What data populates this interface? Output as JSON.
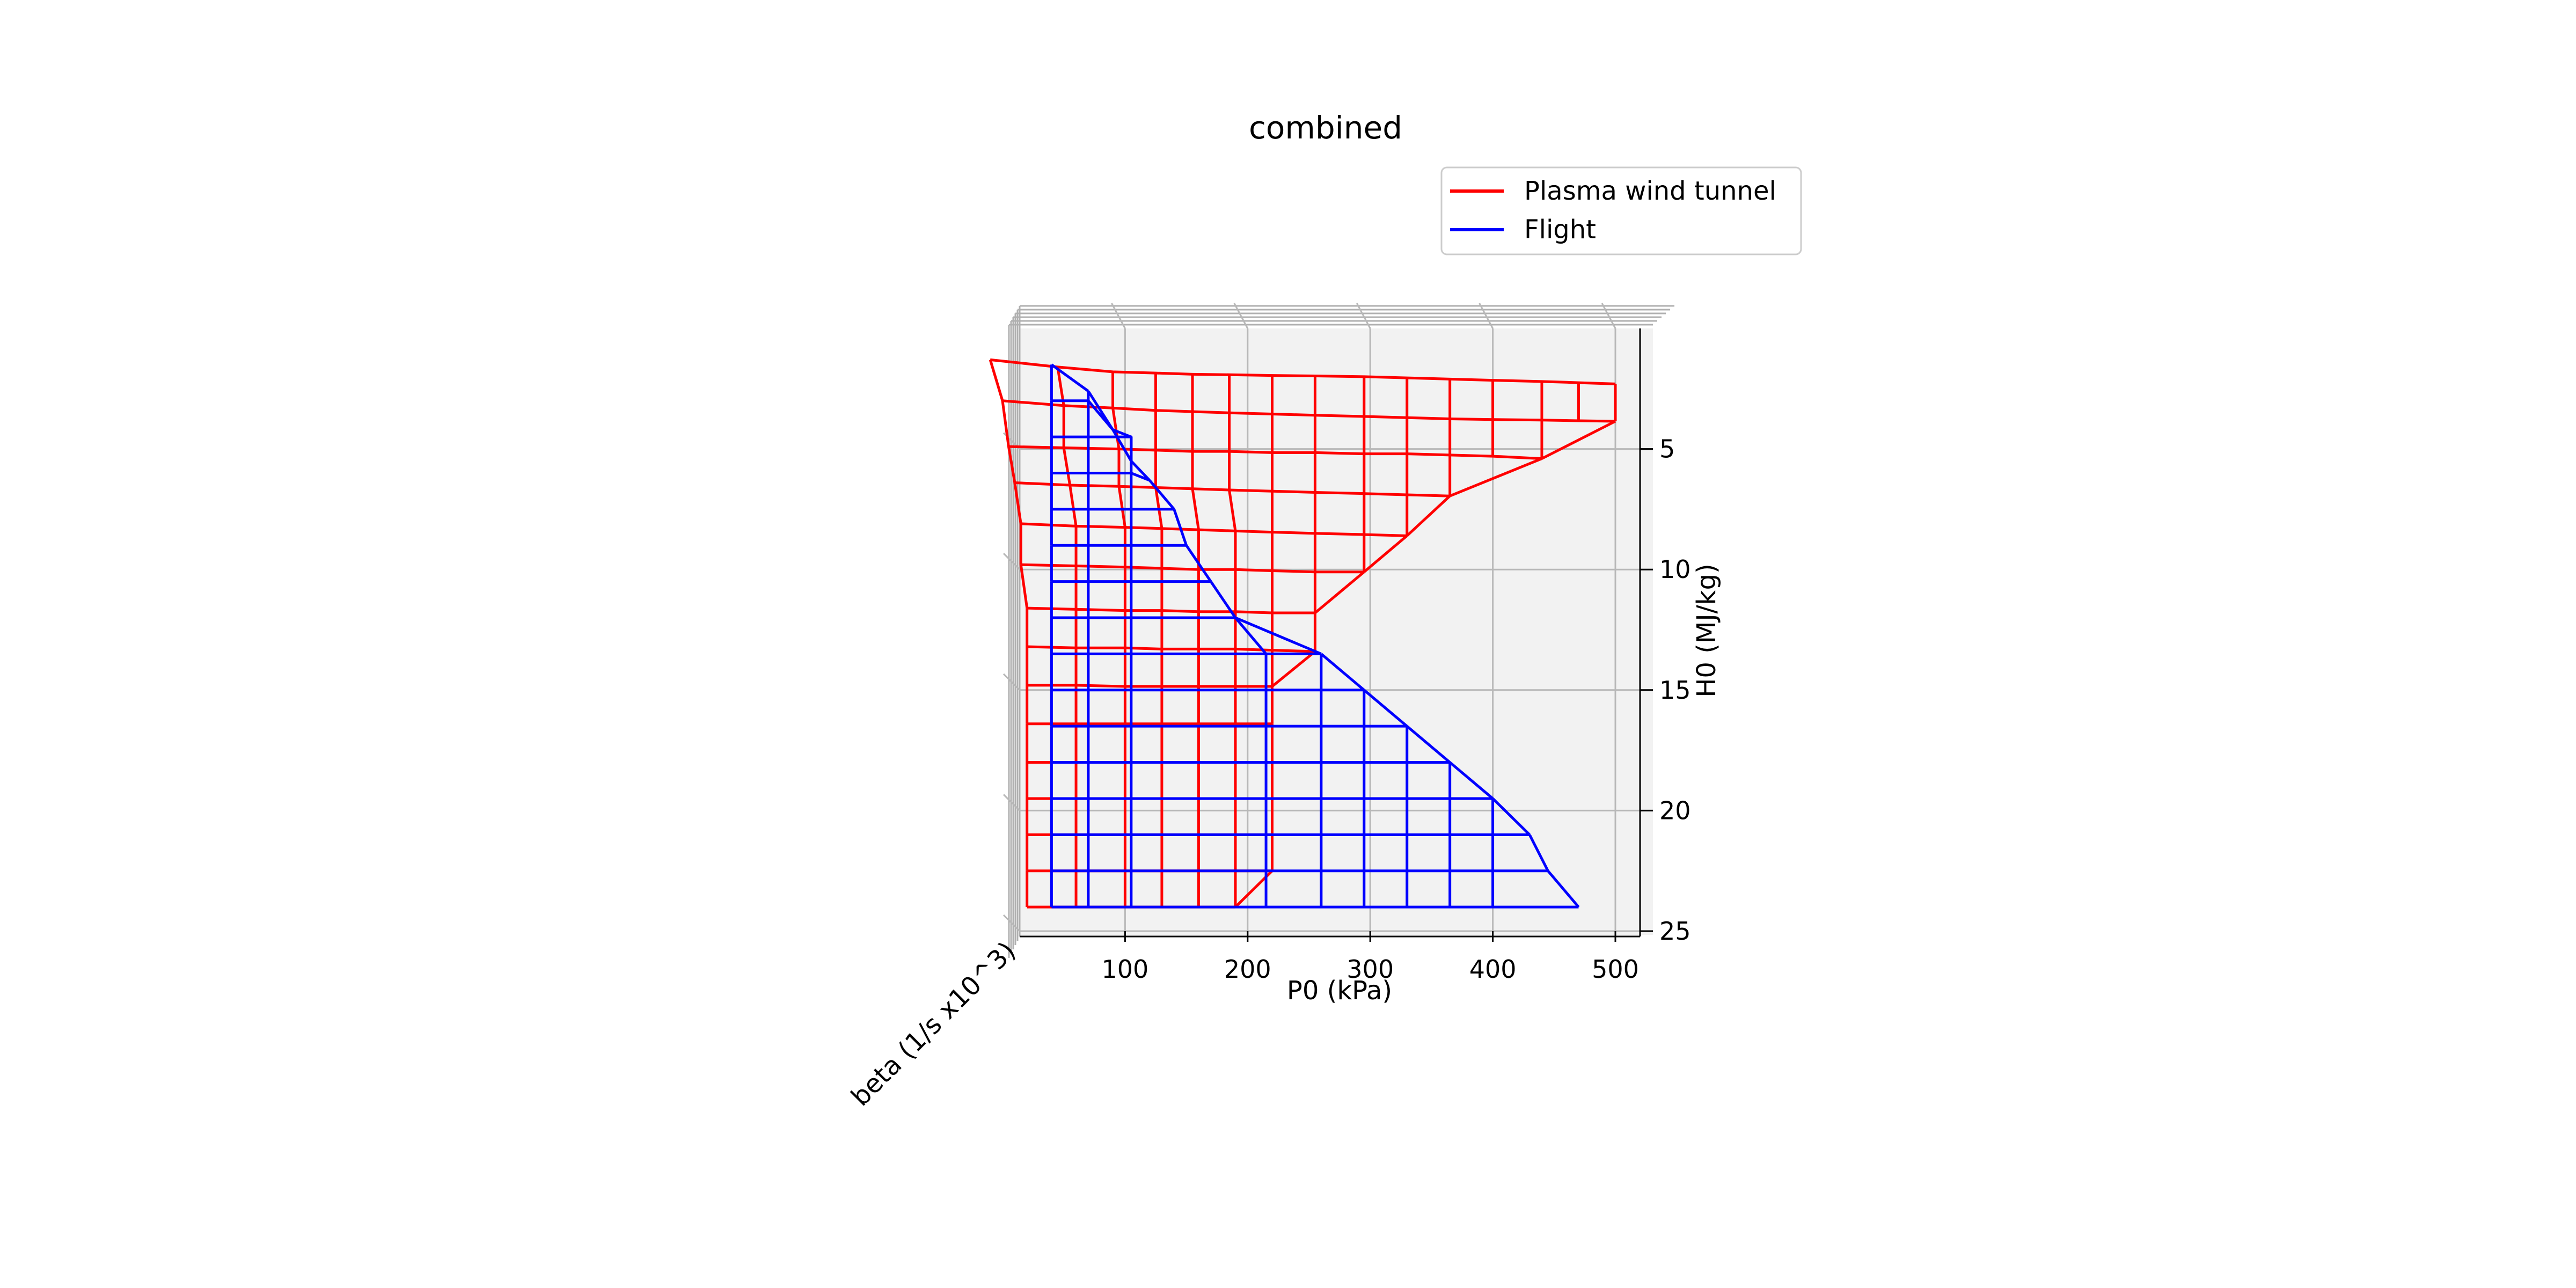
{
  "chart_data": {
    "type": "wireframe",
    "title": "combined",
    "xlabel": "P0 (kPa)",
    "ylabel": "beta (1/s x10^3)",
    "zlabel": "H0 (MJ/kg)",
    "x_ticks": [
      100,
      200,
      300,
      400,
      500
    ],
    "z_ticks": [
      5,
      10,
      15,
      20,
      25
    ],
    "xlim": [
      0,
      510
    ],
    "zlim": [
      0,
      25.5
    ],
    "z_inverted": true,
    "grid": true,
    "legend_position": "top-right",
    "series": [
      {
        "name": "Plasma wind tunnel",
        "color": "#ff0000",
        "rows": [
          [
            [
              -10,
              1.3
            ],
            [
              45,
              1.6
            ],
            [
              90,
              1.8
            ],
            [
              125,
              1.85
            ],
            [
              155,
              1.9
            ],
            [
              185,
              1.92
            ],
            [
              220,
              1.95
            ],
            [
              255,
              1.97
            ],
            [
              295,
              2
            ],
            [
              330,
              2.05
            ],
            [
              365,
              2.1
            ],
            [
              400,
              2.15
            ],
            [
              440,
              2.2
            ],
            [
              470,
              2.25
            ],
            [
              500,
              2.3
            ]
          ],
          [
            [
              0,
              3
            ],
            [
              50,
              3.2
            ],
            [
              90,
              3.3
            ],
            [
              125,
              3.4
            ],
            [
              155,
              3.45
            ],
            [
              185,
              3.5
            ],
            [
              220,
              3.55
            ],
            [
              255,
              3.6
            ],
            [
              295,
              3.65
            ],
            [
              330,
              3.7
            ],
            [
              365,
              3.75
            ],
            [
              400,
              3.78
            ],
            [
              440,
              3.8
            ],
            [
              470,
              3.83
            ],
            [
              500,
              3.85
            ]
          ],
          [
            [
              5,
              4.9
            ],
            [
              50,
              4.95
            ],
            [
              95,
              5
            ],
            [
              125,
              5.05
            ],
            [
              155,
              5.1
            ],
            [
              185,
              5.1
            ],
            [
              220,
              5.15
            ],
            [
              255,
              5.15
            ],
            [
              295,
              5.2
            ],
            [
              330,
              5.2
            ],
            [
              365,
              5.25
            ],
            [
              400,
              5.3
            ],
            [
              440,
              5.4
            ]
          ],
          [
            [
              10,
              6.4
            ],
            [
              55,
              6.5
            ],
            [
              95,
              6.55
            ],
            [
              125,
              6.6
            ],
            [
              155,
              6.65
            ],
            [
              185,
              6.7
            ],
            [
              220,
              6.75
            ],
            [
              255,
              6.8
            ],
            [
              295,
              6.85
            ],
            [
              330,
              6.9
            ],
            [
              365,
              6.95
            ]
          ],
          [
            [
              15,
              8.1
            ],
            [
              60,
              8.2
            ],
            [
              100,
              8.25
            ],
            [
              130,
              8.3
            ],
            [
              160,
              8.35
            ],
            [
              190,
              8.4
            ],
            [
              220,
              8.45
            ],
            [
              255,
              8.5
            ],
            [
              295,
              8.55
            ],
            [
              330,
              8.6
            ]
          ],
          [
            [
              15,
              9.8
            ],
            [
              60,
              9.85
            ],
            [
              100,
              9.9
            ],
            [
              130,
              9.95
            ],
            [
              160,
              10
            ],
            [
              190,
              10
            ],
            [
              220,
              10.05
            ],
            [
              255,
              10.1
            ],
            [
              295,
              10.1
            ]
          ],
          [
            [
              20,
              11.6
            ],
            [
              60,
              11.65
            ],
            [
              100,
              11.7
            ],
            [
              130,
              11.7
            ],
            [
              160,
              11.75
            ],
            [
              190,
              11.75
            ],
            [
              220,
              11.8
            ],
            [
              255,
              11.8
            ]
          ],
          [
            [
              20,
              13.2
            ],
            [
              60,
              13.25
            ],
            [
              100,
              13.25
            ],
            [
              130,
              13.3
            ],
            [
              160,
              13.3
            ],
            [
              190,
              13.3
            ],
            [
              220,
              13.35
            ],
            [
              255,
              13.4
            ]
          ],
          [
            [
              20,
              14.8
            ],
            [
              60,
              14.8
            ],
            [
              100,
              14.85
            ],
            [
              130,
              14.85
            ],
            [
              160,
              14.85
            ],
            [
              190,
              14.85
            ],
            [
              220,
              14.85
            ]
          ],
          [
            [
              20,
              16.4
            ],
            [
              60,
              16.4
            ],
            [
              100,
              16.4
            ],
            [
              130,
              16.4
            ],
            [
              160,
              16.4
            ],
            [
              190,
              16.4
            ],
            [
              220,
              16.4
            ]
          ],
          [
            [
              20,
              18
            ],
            [
              60,
              18
            ],
            [
              100,
              18
            ],
            [
              130,
              18
            ],
            [
              160,
              18
            ],
            [
              190,
              18
            ],
            [
              220,
              18
            ]
          ],
          [
            [
              20,
              19.5
            ],
            [
              60,
              19.5
            ],
            [
              100,
              19.5
            ],
            [
              130,
              19.5
            ],
            [
              160,
              19.5
            ],
            [
              190,
              19.5
            ],
            [
              220,
              19.5
            ]
          ],
          [
            [
              20,
              21
            ],
            [
              60,
              21
            ],
            [
              100,
              21
            ],
            [
              130,
              21
            ],
            [
              160,
              21
            ],
            [
              190,
              21
            ],
            [
              220,
              21
            ]
          ],
          [
            [
              20,
              22.5
            ],
            [
              60,
              22.5
            ],
            [
              100,
              22.5
            ],
            [
              130,
              22.5
            ],
            [
              160,
              22.5
            ],
            [
              190,
              22.5
            ],
            [
              220,
              22.5
            ]
          ],
          [
            [
              20,
              24
            ],
            [
              60,
              24
            ],
            [
              100,
              24
            ],
            [
              130,
              24
            ],
            [
              160,
              24
            ],
            [
              190,
              24
            ]
          ]
        ]
      },
      {
        "name": "Flight",
        "color": "#0000ff",
        "rows": [
          [
            [
              40,
              1.5
            ],
            [
              70,
              2.6
            ]
          ],
          [
            [
              40,
              3
            ],
            [
              70,
              3
            ],
            [
              90,
              4.2
            ]
          ],
          [
            [
              40,
              4.5
            ],
            [
              70,
              4.5
            ],
            [
              105,
              4.5
            ],
            [
              105,
              5.5
            ]
          ],
          [
            [
              40,
              6
            ],
            [
              70,
              6
            ],
            [
              105,
              6
            ],
            [
              120,
              6.3
            ]
          ],
          [
            [
              40,
              7.5
            ],
            [
              70,
              7.5
            ],
            [
              105,
              7.5
            ],
            [
              140,
              7.5
            ]
          ],
          [
            [
              40,
              9
            ],
            [
              70,
              9
            ],
            [
              105,
              9
            ],
            [
              150,
              9
            ]
          ],
          [
            [
              40,
              10.5
            ],
            [
              70,
              10.5
            ],
            [
              105,
              10.5
            ],
            [
              170,
              10.5
            ]
          ],
          [
            [
              40,
              12
            ],
            [
              70,
              12
            ],
            [
              105,
              12
            ],
            [
              190,
              12
            ]
          ],
          [
            [
              40,
              13.5
            ],
            [
              70,
              13.5
            ],
            [
              105,
              13.5
            ],
            [
              215,
              13.5
            ],
            [
              260,
              13.5
            ]
          ],
          [
            [
              40,
              15
            ],
            [
              70,
              15
            ],
            [
              105,
              15
            ],
            [
              215,
              15
            ],
            [
              260,
              15
            ],
            [
              295,
              15
            ]
          ],
          [
            [
              40,
              16.5
            ],
            [
              70,
              16.5
            ],
            [
              105,
              16.5
            ],
            [
              215,
              16.5
            ],
            [
              260,
              16.5
            ],
            [
              295,
              16.5
            ],
            [
              330,
              16.5
            ]
          ],
          [
            [
              40,
              18
            ],
            [
              70,
              18
            ],
            [
              105,
              18
            ],
            [
              215,
              18
            ],
            [
              260,
              18
            ],
            [
              295,
              18
            ],
            [
              330,
              18
            ],
            [
              365,
              18
            ]
          ],
          [
            [
              40,
              19.5
            ],
            [
              70,
              19.5
            ],
            [
              105,
              19.5
            ],
            [
              215,
              19.5
            ],
            [
              260,
              19.5
            ],
            [
              295,
              19.5
            ],
            [
              330,
              19.5
            ],
            [
              365,
              19.5
            ],
            [
              400,
              19.5
            ]
          ],
          [
            [
              40,
              21
            ],
            [
              70,
              21
            ],
            [
              105,
              21
            ],
            [
              215,
              21
            ],
            [
              260,
              21
            ],
            [
              295,
              21
            ],
            [
              330,
              21
            ],
            [
              365,
              21
            ],
            [
              400,
              21
            ],
            [
              430,
              21
            ]
          ],
          [
            [
              40,
              22.5
            ],
            [
              70,
              22.5
            ],
            [
              105,
              22.5
            ],
            [
              215,
              22.5
            ],
            [
              260,
              22.5
            ],
            [
              295,
              22.5
            ],
            [
              330,
              22.5
            ],
            [
              365,
              22.5
            ],
            [
              400,
              22.5
            ],
            [
              445,
              22.5
            ]
          ],
          [
            [
              40,
              24
            ],
            [
              70,
              24
            ],
            [
              105,
              24
            ],
            [
              215,
              24
            ],
            [
              260,
              24
            ],
            [
              295,
              24
            ],
            [
              330,
              24
            ],
            [
              365,
              24
            ],
            [
              400,
              24
            ],
            [
              470,
              24
            ]
          ]
        ]
      }
    ]
  }
}
